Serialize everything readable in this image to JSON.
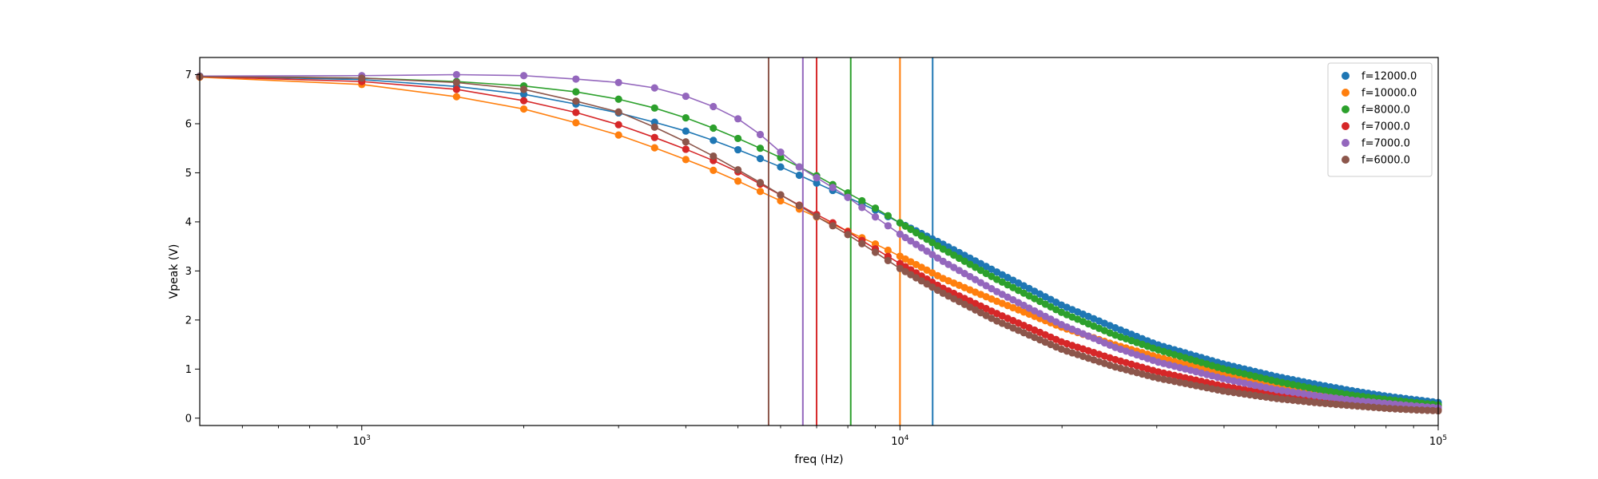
{
  "chart_data": {
    "type": "scatter",
    "title": "",
    "xlabel": "freq (Hz)",
    "ylabel": "Vpeak (V)",
    "xscale": "log",
    "xlim": [
      500,
      100000
    ],
    "ylim": [
      -0.15,
      7.35
    ],
    "grid": false,
    "legend_position": "top-right",
    "x_ticks": [
      {
        "value": 1000,
        "base": "10",
        "exp": "3"
      },
      {
        "value": 10000,
        "base": "10",
        "exp": "4"
      },
      {
        "value": 100000,
        "base": "10",
        "exp": "5"
      }
    ],
    "y_ticks": [
      "0",
      "1",
      "2",
      "3",
      "4",
      "5",
      "6",
      "7"
    ],
    "x_ticks_minor": [
      600,
      700,
      800,
      900,
      2000,
      3000,
      4000,
      5000,
      6000,
      7000,
      8000,
      9000,
      20000,
      30000,
      40000,
      50000,
      60000,
      70000,
      80000,
      90000
    ],
    "vertical_lines": [
      {
        "x": 11500,
        "color": "#1f77b4"
      },
      {
        "x": 10000,
        "color": "#ff7f0e"
      },
      {
        "x": 8100,
        "color": "#2ca02c"
      },
      {
        "x": 7000,
        "color": "#d62728"
      },
      {
        "x": 6600,
        "color": "#9467bd"
      },
      {
        "x": 5700,
        "color": "#8c564b"
      }
    ],
    "series": [
      {
        "name": "f=12000.0",
        "color": "#1f77b4",
        "fc": 12000,
        "x": [
          500,
          1000,
          1500,
          2000,
          2500,
          3000,
          3500,
          4000,
          4500,
          5000,
          5500,
          6000,
          6500,
          7000,
          7500,
          8000,
          9000,
          10000,
          12000,
          15000,
          20000,
          25000,
          30000,
          40000,
          50000,
          60000,
          70000,
          80000,
          90000,
          100000
        ],
        "y": [
          6.97,
          6.9,
          6.76,
          6.6,
          6.4,
          6.22,
          6.03,
          5.85,
          5.66,
          5.47,
          5.29,
          5.12,
          4.95,
          4.79,
          4.64,
          4.5,
          4.24,
          3.98,
          3.55,
          3.0,
          2.3,
          1.85,
          1.5,
          1.1,
          0.85,
          0.68,
          0.55,
          0.45,
          0.38,
          0.32
        ]
      },
      {
        "name": "f=10000.0",
        "color": "#ff7f0e",
        "fc": 10000,
        "x": [
          500,
          1000,
          1500,
          2000,
          2500,
          3000,
          3500,
          4000,
          4500,
          5000,
          5500,
          6000,
          6500,
          7000,
          7500,
          8000,
          9000,
          10000,
          12000,
          15000,
          20000,
          25000,
          30000,
          40000,
          50000,
          60000,
          70000,
          80000,
          90000,
          100000
        ],
        "y": [
          6.95,
          6.8,
          6.55,
          6.3,
          6.02,
          5.77,
          5.51,
          5.27,
          5.05,
          4.83,
          4.62,
          4.43,
          4.26,
          4.1,
          3.95,
          3.81,
          3.55,
          3.3,
          2.85,
          2.4,
          1.85,
          1.5,
          1.25,
          0.9,
          0.65,
          0.5,
          0.4,
          0.33,
          0.28,
          0.24
        ]
      },
      {
        "name": "f=8000.0",
        "color": "#2ca02c",
        "fc": 8000,
        "x": [
          500,
          1000,
          1500,
          2000,
          2500,
          3000,
          3500,
          4000,
          4500,
          5000,
          5500,
          6000,
          6500,
          7000,
          7500,
          8000,
          9000,
          10000,
          12000,
          15000,
          20000,
          25000,
          30000,
          40000,
          50000,
          60000,
          70000,
          80000,
          90000,
          100000
        ],
        "y": [
          6.97,
          6.93,
          6.86,
          6.77,
          6.65,
          6.5,
          6.32,
          6.12,
          5.91,
          5.7,
          5.5,
          5.31,
          5.12,
          4.94,
          4.76,
          4.59,
          4.28,
          3.98,
          3.45,
          2.85,
          2.15,
          1.7,
          1.4,
          1.0,
          0.75,
          0.58,
          0.46,
          0.38,
          0.32,
          0.27
        ]
      },
      {
        "name": "f=7000.0",
        "color": "#d62728",
        "fc": 7000,
        "x": [
          500,
          1000,
          1500,
          2000,
          2500,
          3000,
          3500,
          4000,
          4500,
          5000,
          5500,
          6000,
          6500,
          7000,
          7500,
          8000,
          9000,
          10000,
          12000,
          15000,
          20000,
          25000,
          30000,
          40000,
          50000,
          60000,
          70000,
          80000,
          90000,
          100000
        ],
        "y": [
          6.96,
          6.86,
          6.7,
          6.47,
          6.23,
          5.98,
          5.72,
          5.48,
          5.25,
          5.02,
          4.77,
          4.55,
          4.34,
          4.15,
          3.98,
          3.8,
          3.45,
          3.15,
          2.65,
          2.15,
          1.55,
          1.2,
          0.95,
          0.65,
          0.48,
          0.37,
          0.3,
          0.25,
          0.21,
          0.18
        ]
      },
      {
        "name": "f=7000.0",
        "color": "#9467bd",
        "fc": 7000,
        "x": [
          500,
          1000,
          1500,
          2000,
          2500,
          3000,
          3500,
          4000,
          4500,
          5000,
          5500,
          6000,
          6500,
          7000,
          7500,
          8000,
          9000,
          10000,
          12000,
          15000,
          20000,
          25000,
          30000,
          40000,
          50000,
          60000,
          70000,
          80000,
          90000,
          100000
        ],
        "y": [
          6.97,
          6.98,
          7.0,
          6.98,
          6.91,
          6.84,
          6.73,
          6.56,
          6.35,
          6.1,
          5.78,
          5.42,
          5.12,
          4.9,
          4.7,
          4.5,
          4.1,
          3.75,
          3.2,
          2.6,
          1.9,
          1.45,
          1.15,
          0.8,
          0.58,
          0.45,
          0.36,
          0.3,
          0.25,
          0.21
        ]
      },
      {
        "name": "f=6000.0",
        "color": "#8c564b",
        "fc": 6000,
        "x": [
          500,
          1000,
          1500,
          2000,
          2500,
          3000,
          3500,
          4000,
          4500,
          5000,
          5500,
          6000,
          6500,
          7000,
          7500,
          8000,
          9000,
          10000,
          12000,
          15000,
          20000,
          25000,
          30000,
          40000,
          50000,
          60000,
          70000,
          80000,
          90000,
          100000
        ],
        "y": [
          6.96,
          6.93,
          6.84,
          6.7,
          6.46,
          6.24,
          5.93,
          5.63,
          5.34,
          5.06,
          4.8,
          4.55,
          4.33,
          4.11,
          3.92,
          3.74,
          3.38,
          3.05,
          2.55,
          2.0,
          1.4,
          1.05,
          0.82,
          0.55,
          0.4,
          0.31,
          0.25,
          0.2,
          0.17,
          0.15
        ]
      }
    ]
  }
}
